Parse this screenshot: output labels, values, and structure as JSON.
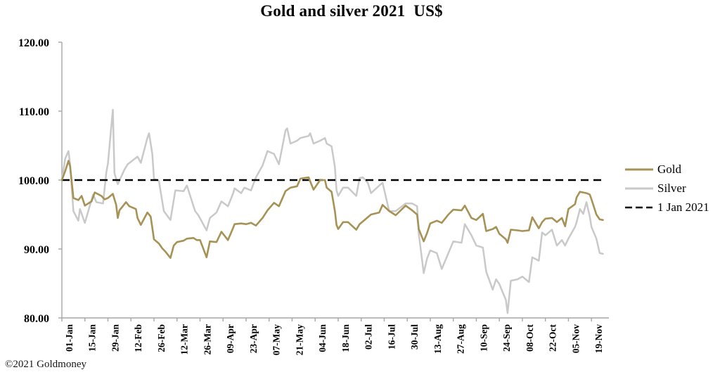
{
  "header": {
    "title": "Gold and silver 2021  US$"
  },
  "footer": {
    "copyright": "©2021 Goldmoney"
  },
  "legend": {
    "entries": [
      "Gold",
      "Silver",
      "1 Jan 2021"
    ]
  },
  "colors": {
    "gold_line": "#A79255",
    "silver_line": "#C9C9C9",
    "reference_line": "#000000",
    "axis": "#A6A6A6",
    "text": "#000000",
    "background": "#FFFFFF"
  },
  "chart_data": {
    "type": "line",
    "title": "Gold and silver 2021  US$",
    "xlabel": "",
    "ylabel": "",
    "x_unit": "days since 1 Jan 2021",
    "ylim": [
      80,
      120
    ],
    "y_ticks": [
      120,
      110,
      100,
      90,
      80
    ],
    "y_tick_labels": [
      "120.00",
      "110.00",
      "100.00",
      "90.00",
      "80.00"
    ],
    "x_tick_days": [
      0,
      14,
      28,
      42,
      56,
      70,
      84,
      98,
      112,
      126,
      140,
      154,
      168,
      182,
      196,
      210,
      224,
      238,
      252,
      266,
      280,
      294,
      308,
      322
    ],
    "x_tick_labels": [
      "01-Jan",
      "15-Jan",
      "29-Jan",
      "12-Feb",
      "26-Feb",
      "12-Mar",
      "26-Mar",
      "09-Apr",
      "23-Apr",
      "07-May",
      "21-May",
      "04-Jun",
      "18-Jun",
      "02-Jul",
      "16-Jul",
      "30-Jul",
      "13-Aug",
      "27-Aug",
      "10-Sep",
      "24-Sep",
      "08-Oct",
      "22-Oct",
      "05-Nov",
      "19-Nov"
    ],
    "grid": false,
    "legend_position": "right-outside",
    "axis_color": "#A6A6A6",
    "reference_line": {
      "label": "1 Jan 2021",
      "value": 100,
      "style": "dashed",
      "color": "#000000"
    },
    "series": [
      {
        "name": "Gold",
        "color": "#A79255",
        "points": [
          [
            0,
            100
          ],
          [
            2,
            101.3
          ],
          [
            4,
            102.8
          ],
          [
            5,
            102
          ],
          [
            7,
            97.4
          ],
          [
            10,
            97.1
          ],
          [
            12,
            97.7
          ],
          [
            14,
            96.3
          ],
          [
            18,
            96.9
          ],
          [
            20,
            98.2
          ],
          [
            24,
            97.7
          ],
          [
            26,
            97.2
          ],
          [
            28,
            97.4
          ],
          [
            31,
            98
          ],
          [
            33,
            96.4
          ],
          [
            34,
            94.5
          ],
          [
            35,
            95.6
          ],
          [
            39,
            96.8
          ],
          [
            41,
            96.2
          ],
          [
            45,
            95.8
          ],
          [
            46,
            94.5
          ],
          [
            48,
            93.5
          ],
          [
            52,
            95.3
          ],
          [
            54,
            94.7
          ],
          [
            56,
            91.4
          ],
          [
            59,
            90.8
          ],
          [
            61,
            90.1
          ],
          [
            63,
            89.6
          ],
          [
            66,
            88.7
          ],
          [
            68,
            90.5
          ],
          [
            70,
            91
          ],
          [
            74,
            91.2
          ],
          [
            76,
            91.5
          ],
          [
            80,
            91.6
          ],
          [
            82,
            91.3
          ],
          [
            84,
            91.3
          ],
          [
            88,
            88.8
          ],
          [
            90,
            91.1
          ],
          [
            94,
            91
          ],
          [
            97,
            92.5
          ],
          [
            101,
            91.3
          ],
          [
            104,
            93
          ],
          [
            105,
            93.6
          ],
          [
            109,
            93.7
          ],
          [
            112,
            93.6
          ],
          [
            115,
            93.8
          ],
          [
            118,
            93.4
          ],
          [
            122,
            94.5
          ],
          [
            125,
            95.6
          ],
          [
            129,
            96.7
          ],
          [
            132,
            96.2
          ],
          [
            136,
            98.4
          ],
          [
            139,
            98.9
          ],
          [
            143,
            99.1
          ],
          [
            145,
            100.2
          ],
          [
            150,
            100.4
          ],
          [
            153,
            98.6
          ],
          [
            157,
            100
          ],
          [
            160,
            100
          ],
          [
            161,
            98.9
          ],
          [
            164,
            98.3
          ],
          [
            166,
            95.5
          ],
          [
            167,
            93.5
          ],
          [
            168,
            92.9
          ],
          [
            171,
            93.9
          ],
          [
            174,
            93.9
          ],
          [
            179,
            92.8
          ],
          [
            181,
            93.6
          ],
          [
            186,
            94.6
          ],
          [
            188,
            95
          ],
          [
            193,
            95.3
          ],
          [
            195,
            96.4
          ],
          [
            199,
            95.5
          ],
          [
            203,
            94.9
          ],
          [
            209,
            96.3
          ],
          [
            213,
            95.6
          ],
          [
            216,
            95
          ],
          [
            217,
            92.9
          ],
          [
            220,
            91.1
          ],
          [
            222,
            92.3
          ],
          [
            224,
            93.7
          ],
          [
            228,
            94.1
          ],
          [
            231,
            93.8
          ],
          [
            235,
            95
          ],
          [
            238,
            95.7
          ],
          [
            243,
            95.6
          ],
          [
            245,
            96.3
          ],
          [
            249,
            94.5
          ],
          [
            252,
            94.2
          ],
          [
            256,
            95.1
          ],
          [
            258,
            92.6
          ],
          [
            262,
            92.9
          ],
          [
            264,
            93.2
          ],
          [
            266,
            92.2
          ],
          [
            270,
            91.4
          ],
          [
            271,
            90.9
          ],
          [
            273,
            92.8
          ],
          [
            277,
            92.7
          ],
          [
            280,
            92.6
          ],
          [
            284,
            92.7
          ],
          [
            286,
            94.6
          ],
          [
            290,
            93
          ],
          [
            292,
            93.9
          ],
          [
            294,
            94.4
          ],
          [
            298,
            94.5
          ],
          [
            301,
            93.9
          ],
          [
            304,
            94.5
          ],
          [
            306,
            93.3
          ],
          [
            308,
            95.8
          ],
          [
            312,
            96.5
          ],
          [
            313,
            97.5
          ],
          [
            315,
            98.3
          ],
          [
            319,
            98.1
          ],
          [
            321,
            97.9
          ],
          [
            322,
            97.2
          ],
          [
            325,
            95
          ],
          [
            327,
            94.3
          ],
          [
            329,
            94.2
          ]
        ]
      },
      {
        "name": "Silver",
        "color": "#C9C9C9",
        "points": [
          [
            0,
            100
          ],
          [
            2,
            103.1
          ],
          [
            4,
            104.2
          ],
          [
            5,
            102.3
          ],
          [
            7,
            95.5
          ],
          [
            10,
            94.1
          ],
          [
            11,
            95.8
          ],
          [
            14,
            93.8
          ],
          [
            19,
            97.9
          ],
          [
            21,
            96.8
          ],
          [
            25,
            96.6
          ],
          [
            27,
            101.1
          ],
          [
            28,
            102.4
          ],
          [
            31,
            110.2
          ],
          [
            32,
            101
          ],
          [
            34,
            99.4
          ],
          [
            38,
            101.5
          ],
          [
            40,
            102.3
          ],
          [
            46,
            103.4
          ],
          [
            48,
            102.5
          ],
          [
            52,
            106.1
          ],
          [
            53,
            106.8
          ],
          [
            55,
            103.8
          ],
          [
            56,
            100.2
          ],
          [
            59,
            99.9
          ],
          [
            62,
            95.5
          ],
          [
            66,
            94.2
          ],
          [
            69,
            98.5
          ],
          [
            74,
            98.4
          ],
          [
            76,
            99.2
          ],
          [
            81,
            95.5
          ],
          [
            83,
            94.9
          ],
          [
            88,
            92.7
          ],
          [
            90,
            94.5
          ],
          [
            94,
            95.3
          ],
          [
            97,
            96.9
          ],
          [
            101,
            96.2
          ],
          [
            104,
            98
          ],
          [
            105,
            98.8
          ],
          [
            109,
            98.1
          ],
          [
            111,
            98.9
          ],
          [
            115,
            98.5
          ],
          [
            118,
            100.4
          ],
          [
            122,
            102.1
          ],
          [
            125,
            104.2
          ],
          [
            129,
            103.8
          ],
          [
            132,
            102.3
          ],
          [
            136,
            107.2
          ],
          [
            137,
            107.5
          ],
          [
            139,
            105.3
          ],
          [
            143,
            105.7
          ],
          [
            145,
            106.1
          ],
          [
            150,
            106.4
          ],
          [
            151,
            106.8
          ],
          [
            153,
            105.3
          ],
          [
            157,
            105.7
          ],
          [
            160,
            106.1
          ],
          [
            161,
            105.3
          ],
          [
            164,
            104.9
          ],
          [
            166,
            101.9
          ],
          [
            167,
            98.5
          ],
          [
            168,
            97.7
          ],
          [
            171,
            98.9
          ],
          [
            174,
            98.9
          ],
          [
            179,
            97.7
          ],
          [
            181,
            100.3
          ],
          [
            183,
            100.4
          ],
          [
            186,
            99.6
          ],
          [
            188,
            98.1
          ],
          [
            193,
            99.2
          ],
          [
            195,
            99.6
          ],
          [
            199,
            95.5
          ],
          [
            203,
            95.5
          ],
          [
            209,
            96.6
          ],
          [
            213,
            96.6
          ],
          [
            216,
            96.2
          ],
          [
            217,
            92.2
          ],
          [
            220,
            86.5
          ],
          [
            222,
            88.6
          ],
          [
            224,
            89.8
          ],
          [
            228,
            89.4
          ],
          [
            231,
            87.1
          ],
          [
            235,
            89.4
          ],
          [
            238,
            91.1
          ],
          [
            243,
            90.9
          ],
          [
            245,
            93.6
          ],
          [
            249,
            92
          ],
          [
            252,
            90.5
          ],
          [
            256,
            90.2
          ],
          [
            258,
            86.7
          ],
          [
            262,
            84.1
          ],
          [
            264,
            85.6
          ],
          [
            266,
            84.9
          ],
          [
            270,
            82.6
          ],
          [
            271,
            80.7
          ],
          [
            273,
            85.4
          ],
          [
            277,
            85.6
          ],
          [
            280,
            86
          ],
          [
            284,
            85.2
          ],
          [
            286,
            88.8
          ],
          [
            290,
            88.3
          ],
          [
            292,
            92.4
          ],
          [
            294,
            92
          ],
          [
            298,
            92.8
          ],
          [
            301,
            90.5
          ],
          [
            304,
            91.3
          ],
          [
            306,
            90.5
          ],
          [
            308,
            91.5
          ],
          [
            312,
            93.2
          ],
          [
            313,
            93.9
          ],
          [
            315,
            95.8
          ],
          [
            317,
            95.1
          ],
          [
            319,
            96.8
          ],
          [
            321,
            94.7
          ],
          [
            322,
            93.2
          ],
          [
            325,
            91.5
          ],
          [
            327,
            89.4
          ],
          [
            329,
            89.3
          ]
        ]
      }
    ]
  }
}
